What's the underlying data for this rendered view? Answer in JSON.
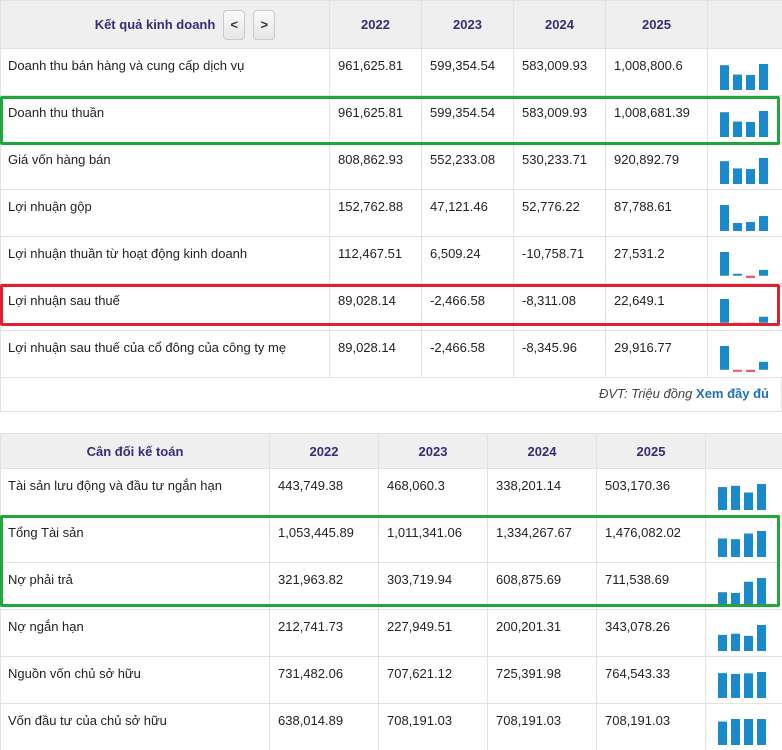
{
  "income": {
    "title": "Kết quả kinh doanh",
    "prev_label": "<",
    "next_label": ">",
    "years": [
      "2022",
      "2023",
      "2024",
      "2025"
    ],
    "rows": [
      {
        "label": "Doanh thu bán hàng và cung cấp dịch vụ",
        "values": [
          "961,625.81",
          "599,354.54",
          "583,009.93",
          "1,008,800.6"
        ],
        "spark": [
          961625.81,
          599354.54,
          583009.93,
          1008800.6
        ]
      },
      {
        "label": "Doanh thu thuần",
        "values": [
          "961,625.81",
          "599,354.54",
          "583,009.93",
          "1,008,681.39"
        ],
        "spark": [
          961625.81,
          599354.54,
          583009.93,
          1008681.39
        ]
      },
      {
        "label": "Giá vốn hàng bán",
        "values": [
          "808,862.93",
          "552,233.08",
          "530,233.71",
          "920,892.79"
        ],
        "spark": [
          808862.93,
          552233.08,
          530233.71,
          920892.79
        ]
      },
      {
        "label": "Lợi nhuận gộp",
        "values": [
          "152,762.88",
          "47,121.46",
          "52,776.22",
          "87,788.61"
        ],
        "spark": [
          152762.88,
          47121.46,
          52776.22,
          87788.61
        ]
      },
      {
        "label": "Lợi nhuận thuần từ hoạt động kinh doanh",
        "values": [
          "112,467.51",
          "6,509.24",
          "-10,758.71",
          "27,531.2"
        ],
        "spark": [
          112467.51,
          6509.24,
          -10758.71,
          27531.2
        ]
      },
      {
        "label": "Lợi nhuận sau thuế",
        "values": [
          "89,028.14",
          "-2,466.58",
          "-8,311.08",
          "22,649.1"
        ],
        "spark": [
          89028.14,
          -2466.58,
          -8311.08,
          22649.1
        ]
      },
      {
        "label": "Lợi nhuận sau thuế của cổ đông của công ty mẹ",
        "values": [
          "89,028.14",
          "-2,466.58",
          "-8,345.96",
          "29,916.77"
        ],
        "spark": [
          89028.14,
          -2466.58,
          -8345.96,
          29916.77
        ]
      }
    ],
    "unit_note": "ĐVT: Triệu đồng",
    "more_link": "Xem đầy đủ"
  },
  "balance": {
    "title": "Cân đối kế toán",
    "years": [
      "2022",
      "2023",
      "2024",
      "2025"
    ],
    "rows": [
      {
        "label": "Tài sản lưu động và đầu tư ngắn hạn",
        "values": [
          "443,749.38",
          "468,060.3",
          "338,201.14",
          "503,170.36"
        ],
        "spark": [
          443749.38,
          468060.3,
          338201.14,
          503170.36
        ]
      },
      {
        "label": "Tổng Tài sản",
        "values": [
          "1,053,445.89",
          "1,011,341.06",
          "1,334,267.67",
          "1,476,082.02"
        ],
        "spark": [
          1053445.89,
          1011341.06,
          1334267.67,
          1476082.02
        ]
      },
      {
        "label": "Nợ phải trả",
        "values": [
          "321,963.82",
          "303,719.94",
          "608,875.69",
          "711,538.69"
        ],
        "spark": [
          321963.82,
          303719.94,
          608875.69,
          711538.69
        ]
      },
      {
        "label": "Nợ ngắn hạn",
        "values": [
          "212,741.73",
          "227,949.51",
          "200,201.31",
          "343,078.26"
        ],
        "spark": [
          212741.73,
          227949.51,
          200201.31,
          343078.26
        ]
      },
      {
        "label": "Nguồn vốn chủ sở hữu",
        "values": [
          "731,482.06",
          "707,621.12",
          "725,391.98",
          "764,543.33"
        ],
        "spark": [
          731482.06,
          707621.12,
          725391.98,
          764543.33
        ]
      },
      {
        "label": "Vốn đầu tư của chủ sở hữu",
        "values": [
          "638,014.89",
          "708,191.03",
          "708,191.03",
          "708,191.03"
        ],
        "spark": [
          638014.89,
          708191.03,
          708191.03,
          708191.03
        ]
      }
    ]
  },
  "colors": {
    "header_text": "#3b2a7a",
    "spark_positive": "#1a8acb",
    "spark_negative": "#e85b6c",
    "highlight_green": "#21a63b",
    "highlight_red": "#e0202f",
    "link": "#1f6fb8"
  }
}
